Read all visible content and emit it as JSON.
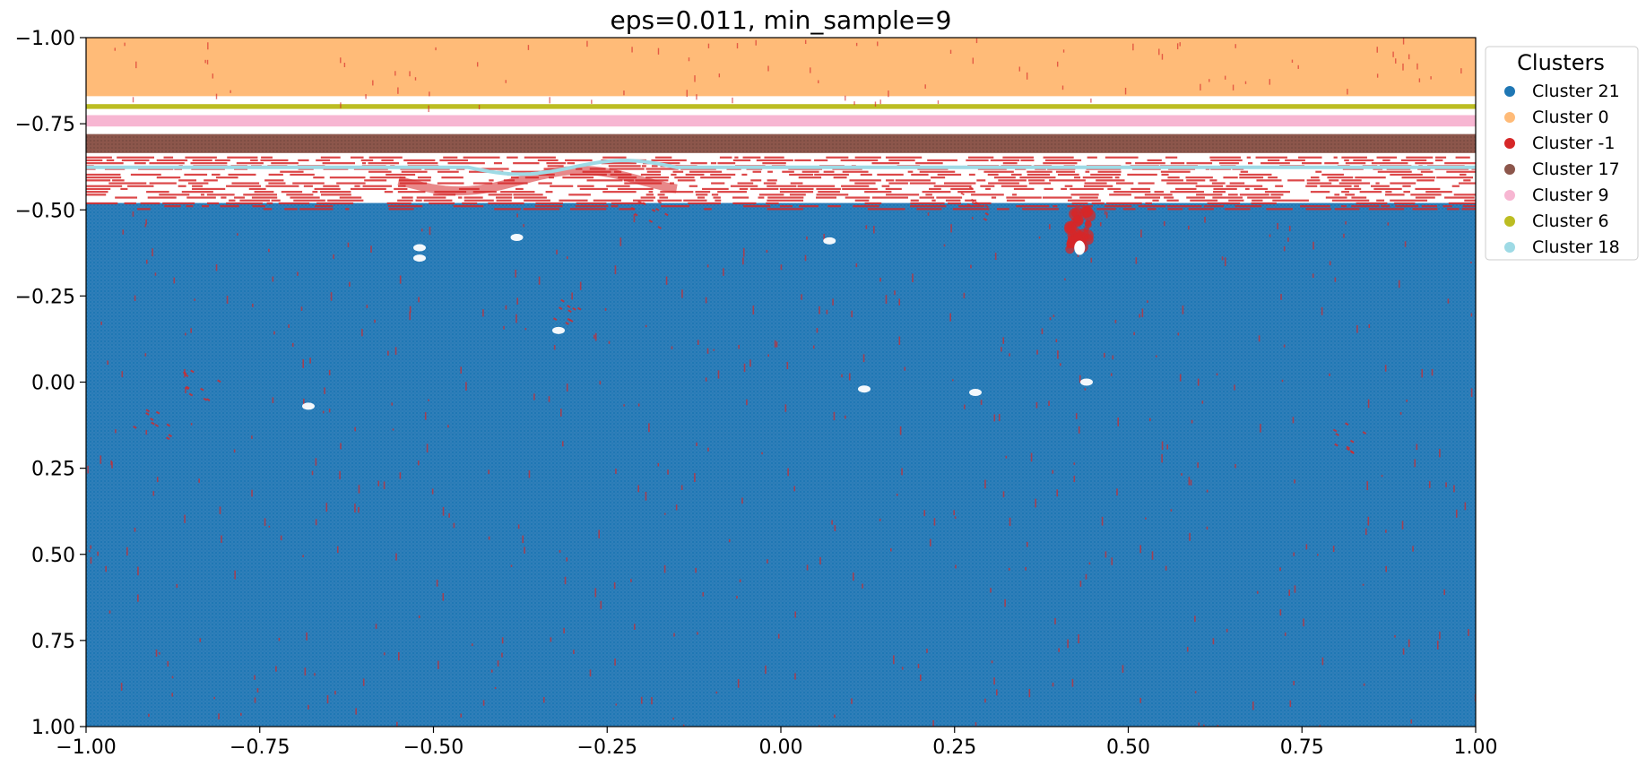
{
  "chart_data": {
    "type": "scatter",
    "title": "eps=0.011, min_sample=9",
    "xlabel": "",
    "ylabel": "",
    "xlim": [
      -1.0,
      1.0
    ],
    "ylim": [
      1.0,
      -1.0
    ],
    "y_inverted": true,
    "grid": false,
    "x_ticks": [
      "−1.00",
      "−0.75",
      "−0.50",
      "−0.25",
      "0.00",
      "0.25",
      "0.50",
      "0.75",
      "1.00"
    ],
    "x_tick_values": [
      -1.0,
      -0.75,
      -0.5,
      -0.25,
      0.0,
      0.25,
      0.5,
      0.75,
      1.0
    ],
    "y_ticks": [
      "−1.00",
      "−0.75",
      "−0.50",
      "−0.25",
      "0.00",
      "0.25",
      "0.50",
      "0.75",
      "1.00"
    ],
    "y_tick_values": [
      -1.0,
      -0.75,
      -0.5,
      -0.25,
      0.0,
      0.25,
      0.5,
      0.75,
      1.0
    ],
    "legend": {
      "title": "Clusters",
      "placement": "outside-upper-right",
      "entries": [
        {
          "label": "Cluster 21",
          "color": "#1f77b4"
        },
        {
          "label": "Cluster 0",
          "color": "#ffbb78"
        },
        {
          "label": "Cluster -1",
          "color": "#d62728"
        },
        {
          "label": "Cluster 17",
          "color": "#8c564b"
        },
        {
          "label": "Cluster 9",
          "color": "#f7b6d2"
        },
        {
          "label": "Cluster 6",
          "color": "#bcbd22"
        },
        {
          "label": "Cluster 18",
          "color": "#9edae5"
        }
      ]
    },
    "regions": [
      {
        "cluster": "Cluster 0",
        "y_range": [
          -1.0,
          -0.83
        ],
        "color": "#ffbb78"
      },
      {
        "cluster": "Cluster 6",
        "y_range": [
          -0.807,
          -0.793
        ],
        "color": "#bcbd22"
      },
      {
        "cluster": "Cluster 9",
        "y_range": [
          -0.775,
          -0.742
        ],
        "color": "#f7b6d2"
      },
      {
        "cluster": "Cluster 17",
        "y_range": [
          -0.72,
          -0.665
        ],
        "color": "#8c564b"
      },
      {
        "cluster": "Cluster 18",
        "y_range": [
          -0.632,
          -0.615
        ],
        "color": "#9edae5"
      },
      {
        "cluster": "Cluster -1",
        "y_range": [
          -0.655,
          -0.5
        ],
        "color": "#d62728"
      },
      {
        "cluster": "Cluster 21",
        "y_range": [
          -0.52,
          1.0
        ],
        "color": "#1f77b4"
      }
    ],
    "noise_hotspots": [
      {
        "cluster": "Cluster -1",
        "x": 0.43,
        "y": -0.45
      },
      {
        "cluster": "Cluster -1",
        "x": -0.84,
        "y": 0.0
      },
      {
        "cluster": "Cluster -1",
        "x": -0.9,
        "y": 0.12
      },
      {
        "cluster": "Cluster -1",
        "x": -0.3,
        "y": -0.2
      },
      {
        "cluster": "Cluster -1",
        "x": -0.19,
        "y": -0.5
      },
      {
        "cluster": "Cluster -1",
        "x": 0.28,
        "y": -0.53
      },
      {
        "cluster": "Cluster -1",
        "x": 0.81,
        "y": 0.15
      }
    ]
  }
}
